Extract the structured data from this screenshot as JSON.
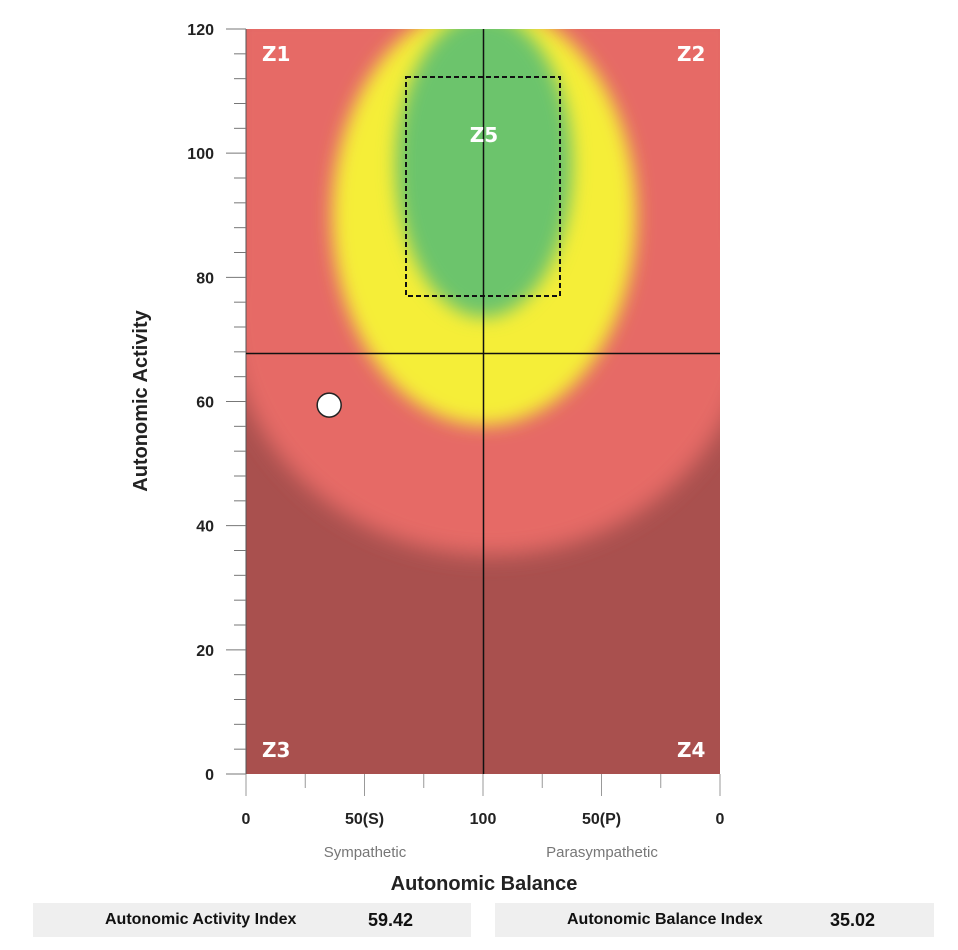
{
  "chart_data": {
    "type": "scatter",
    "xlabel": "Autonomic Balance",
    "ylabel": "Autonomic Activity",
    "x_tick_labels": [
      "0",
      "50(S)",
      "100",
      "50(P)",
      "0"
    ],
    "y_ticks": [
      0,
      20,
      40,
      60,
      80,
      100,
      120
    ],
    "ylim": [
      0,
      120
    ],
    "x_sub_labels": [
      "Sympathetic",
      "Parasympathetic"
    ],
    "zones": [
      "Z1",
      "Z2",
      "Z3",
      "Z4",
      "Z5"
    ],
    "point": {
      "balance_index": 35.02,
      "activity_index": 59.42
    },
    "colors": {
      "green": "#6cc46c",
      "yellow": "#f5ee38",
      "red": "#e66a66",
      "dark_red": "#a9504e"
    },
    "grid": false
  },
  "indices": {
    "activity_label": "Autonomic Activity Index",
    "activity_value": "59.42",
    "balance_label": "Autonomic Balance Index",
    "balance_value": "35.02"
  }
}
